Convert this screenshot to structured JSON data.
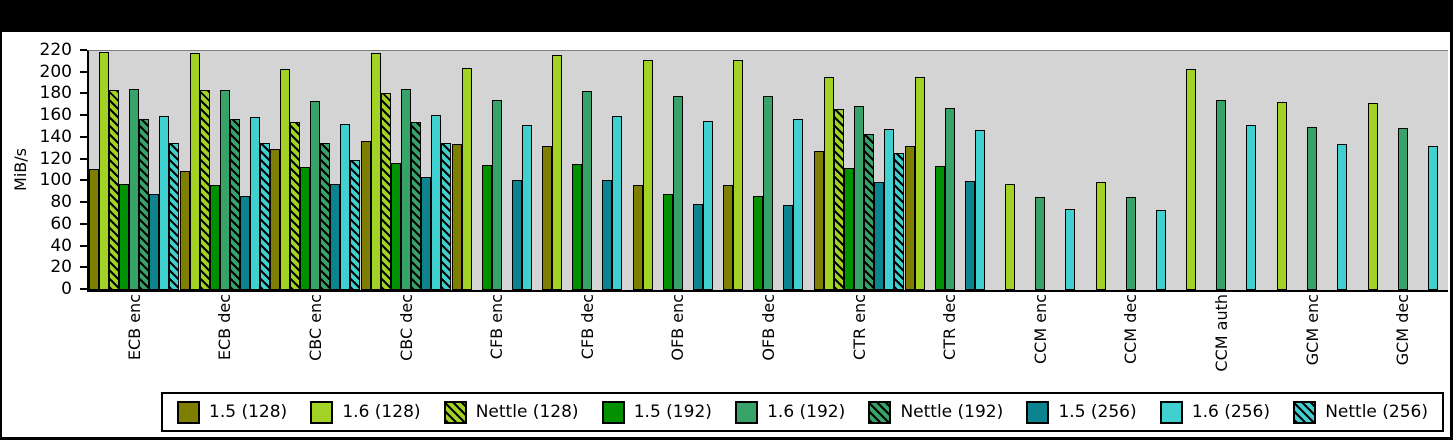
{
  "colors": {
    "background": "#000000",
    "frame": "#ffffff",
    "plot_bg": "#D4D4D4",
    "axis": "#000000"
  },
  "chart_data": {
    "type": "bar",
    "title": "",
    "xlabel": "",
    "ylabel": "MiB/s",
    "ylim": [
      0,
      220
    ],
    "ytick_step": 20,
    "grid": false,
    "legend_position": "bottom",
    "plot_bg": "#D4D4D4",
    "categories": [
      "ECB enc",
      "ECB dec",
      "CBC enc",
      "CBC dec",
      "CFB enc",
      "CFB dec",
      "OFB enc",
      "OFB dec",
      "CTR enc",
      "CTR dec",
      "CCM enc",
      "CCM dec",
      "CCM auth",
      "GCM enc",
      "GCM dec"
    ],
    "series": [
      {
        "name": "1.5 (128)",
        "color": "#7E7E00",
        "hatch": false,
        "values": [
          111,
          110,
          130,
          137,
          134,
          133,
          97,
          97,
          128,
          133,
          null,
          null,
          null,
          null,
          null
        ]
      },
      {
        "name": "1.6 (128)",
        "color": "#A2D324",
        "hatch": false,
        "values": [
          219,
          218,
          203,
          218,
          204,
          216,
          212,
          212,
          196,
          196,
          98,
          99,
          203,
          173,
          172
        ]
      },
      {
        "name": "Nettle (128)",
        "color": "#A2D324",
        "hatch": true,
        "values": [
          184,
          184,
          155,
          181,
          null,
          null,
          null,
          null,
          167,
          null,
          null,
          null,
          null,
          null,
          null
        ]
      },
      {
        "name": "1.5 (192)",
        "color": "#009000",
        "hatch": false,
        "values": [
          98,
          97,
          113,
          117,
          115,
          116,
          88,
          87,
          112,
          114,
          null,
          null,
          null,
          null,
          null
        ]
      },
      {
        "name": "1.6 (192)",
        "color": "#38A369",
        "hatch": false,
        "values": [
          185,
          184,
          174,
          185,
          175,
          183,
          179,
          179,
          169,
          168,
          86,
          86,
          175,
          150,
          149
        ]
      },
      {
        "name": "Nettle (192)",
        "color": "#38A369",
        "hatch": true,
        "values": [
          157,
          157,
          135,
          155,
          null,
          null,
          null,
          null,
          144,
          null,
          null,
          null,
          null,
          null,
          null
        ]
      },
      {
        "name": "1.5 (256)",
        "color": "#0B8490",
        "hatch": false,
        "values": [
          88,
          87,
          98,
          104,
          101,
          101,
          79,
          78,
          99,
          100,
          null,
          null,
          null,
          null,
          null
        ]
      },
      {
        "name": "1.6 (256)",
        "color": "#40D0D0",
        "hatch": false,
        "values": [
          160,
          159,
          153,
          161,
          152,
          160,
          156,
          157,
          148,
          147,
          75,
          74,
          152,
          134,
          133
        ]
      },
      {
        "name": "Nettle (256)",
        "color": "#40D0D0",
        "hatch": true,
        "values": [
          135,
          135,
          120,
          135,
          null,
          null,
          null,
          null,
          126,
          null,
          null,
          null,
          null,
          null,
          null
        ]
      }
    ]
  }
}
